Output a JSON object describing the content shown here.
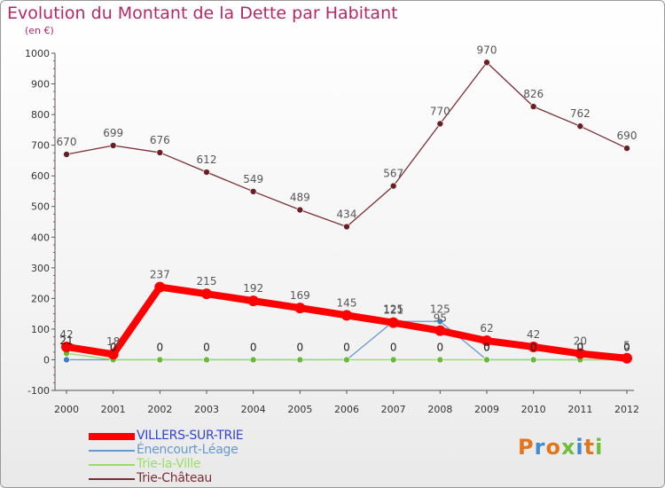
{
  "chart_data": {
    "type": "line",
    "title": "Evolution du Montant de la Dette par Habitant",
    "subtitle": "(en €)",
    "xlabel": "",
    "ylabel": "",
    "ylim": [
      -100,
      1000
    ],
    "y_ticks": [
      -100,
      0,
      100,
      200,
      300,
      400,
      500,
      600,
      700,
      800,
      900,
      1000
    ],
    "categories": [
      "2000",
      "2001",
      "2002",
      "2003",
      "2004",
      "2005",
      "2006",
      "2007",
      "2008",
      "2009",
      "2010",
      "2011",
      "2012"
    ],
    "grid": false,
    "legend_position": "bottom-left",
    "series": [
      {
        "name": "VILLERS-SUR-TRIE",
        "color": "#ff0000",
        "label_color": "#555555",
        "values": [
          42,
          18,
          237,
          215,
          192,
          169,
          145,
          121,
          95,
          62,
          42,
          20,
          5
        ],
        "labels": [
          "42",
          "18",
          "237",
          "215",
          "192",
          "169",
          "145",
          "121",
          "95",
          "62",
          "42",
          "20",
          "5"
        ]
      },
      {
        "name": "Énencourt-Léage",
        "color": "#6699cc",
        "label_color": "#555555",
        "values": [
          0,
          0,
          0,
          0,
          0,
          0,
          0,
          125,
          125,
          0,
          0,
          0,
          0
        ],
        "labels": [
          "",
          "0",
          "",
          "",
          "",
          "",
          "",
          "125",
          "125",
          "0",
          "0",
          "0",
          "0"
        ]
      },
      {
        "name": "Trie-la-Ville",
        "color": "#99dd66",
        "label_color": "#222222",
        "values": [
          21,
          0,
          0,
          0,
          0,
          0,
          0,
          0,
          0,
          0,
          0,
          0,
          0
        ],
        "labels": [
          "21",
          "0",
          "0",
          "0",
          "0",
          "0",
          "0",
          "0",
          "0",
          "0",
          "0",
          "0",
          "0"
        ]
      },
      {
        "name": "Trie-Château",
        "color": "#7a2e35",
        "label_color": "#555555",
        "values": [
          670,
          699,
          676,
          612,
          549,
          489,
          434,
          567,
          770,
          970,
          826,
          762,
          690
        ],
        "labels": [
          "670",
          "699",
          "676",
          "612",
          "549",
          "489",
          "434",
          "567",
          "770",
          "970",
          "826",
          "762",
          "690"
        ]
      }
    ]
  },
  "branding": {
    "logo_letters": [
      "P",
      "r",
      "o",
      "x",
      "i",
      "t",
      "i"
    ],
    "logo_colors": [
      "#e3761c",
      "#3f8ad1",
      "#e3761c",
      "#6fbe3b",
      "#3f8ad1",
      "#e3761c",
      "#6fbe3b"
    ]
  }
}
